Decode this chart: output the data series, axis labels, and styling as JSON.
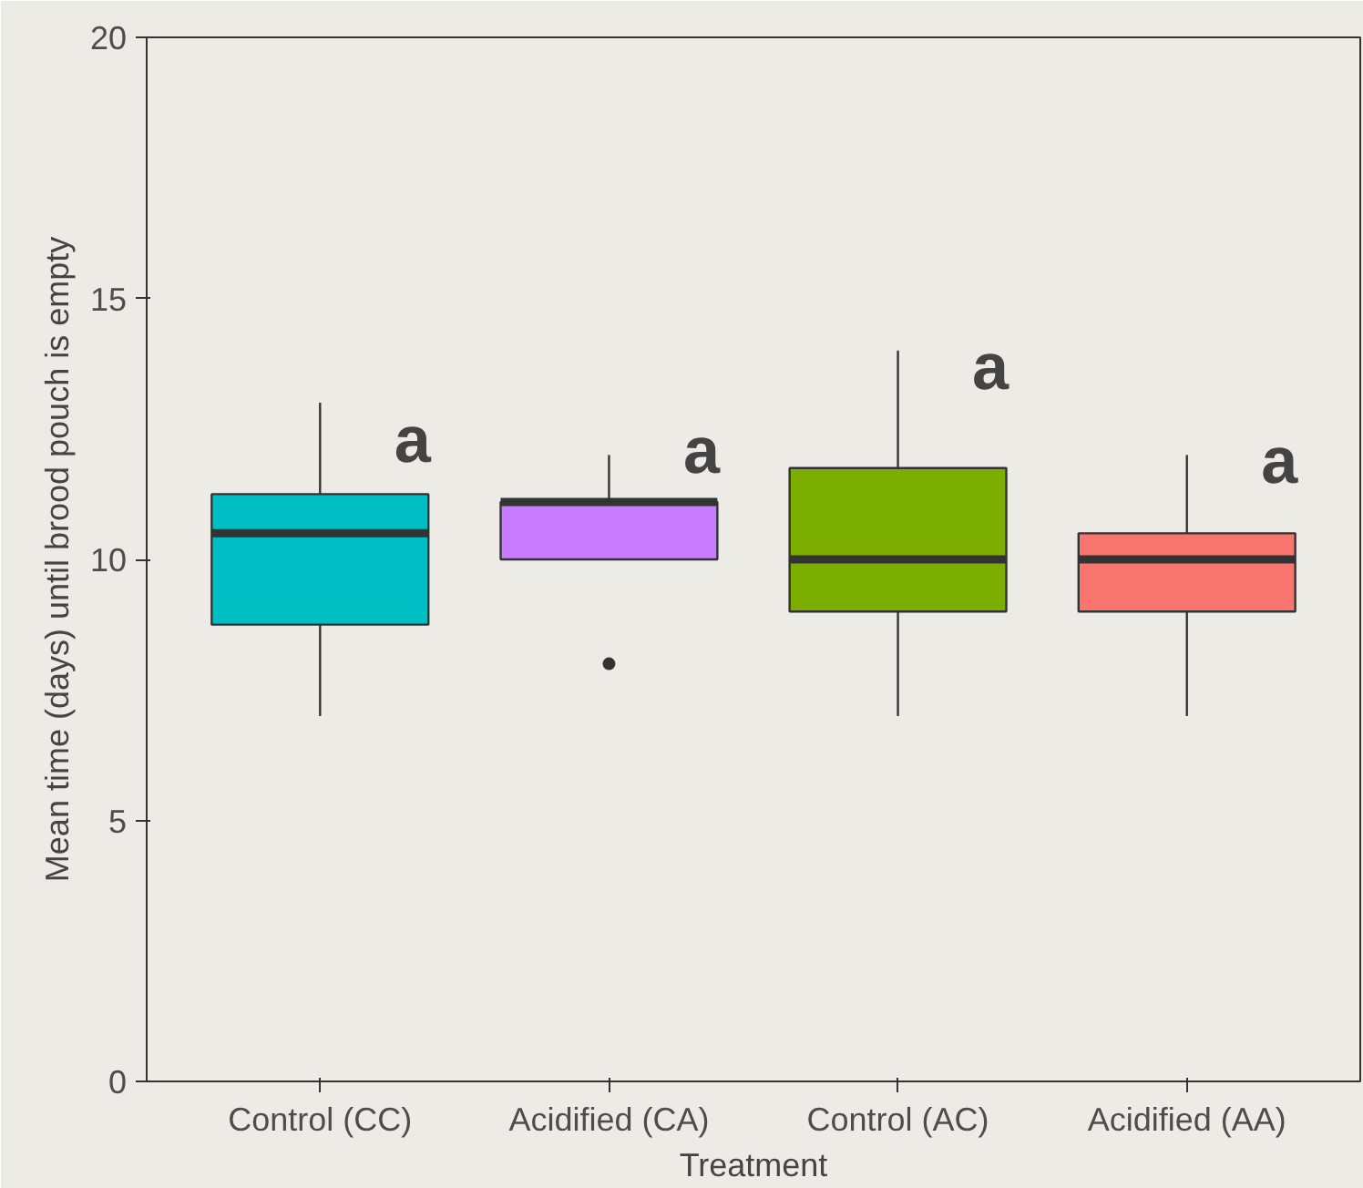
{
  "chart_data": {
    "type": "box",
    "xlabel": "Treatment",
    "ylabel": "Mean time (days) until brood pouch is empty",
    "categories": [
      "Control (CC)",
      "Acidified (CA)",
      "Control (AC)",
      "Acidified (AA)"
    ],
    "colors": [
      "#00bfc4",
      "#c77cff",
      "#7cae00",
      "#f8766d"
    ],
    "boxes": [
      {
        "low": 7,
        "q1": 8.75,
        "median": 10.5,
        "q3": 11.25,
        "high": 13
      },
      {
        "low": 10,
        "q1": 10,
        "median": 11.1,
        "q3": 11.1,
        "high": 12,
        "outliers": [
          8
        ]
      },
      {
        "low": 7,
        "q1": 9,
        "median": 10,
        "q3": 11.75,
        "high": 14
      },
      {
        "low": 7,
        "q1": 9,
        "median": 10,
        "q3": 10.5,
        "high": 12
      }
    ],
    "ylim": [
      0,
      20
    ],
    "yticks": [
      0,
      5,
      10,
      15,
      20
    ],
    "annotations": [
      {
        "text": "a",
        "x": "Control (CC)",
        "y": 12.3
      },
      {
        "text": "a",
        "x": "Acidified (CA)",
        "y": 12.1
      },
      {
        "text": "a",
        "x": "Control (AC)",
        "y": 13.7
      },
      {
        "text": "a",
        "x": "Acidified (AA)",
        "y": 11.9
      }
    ]
  }
}
